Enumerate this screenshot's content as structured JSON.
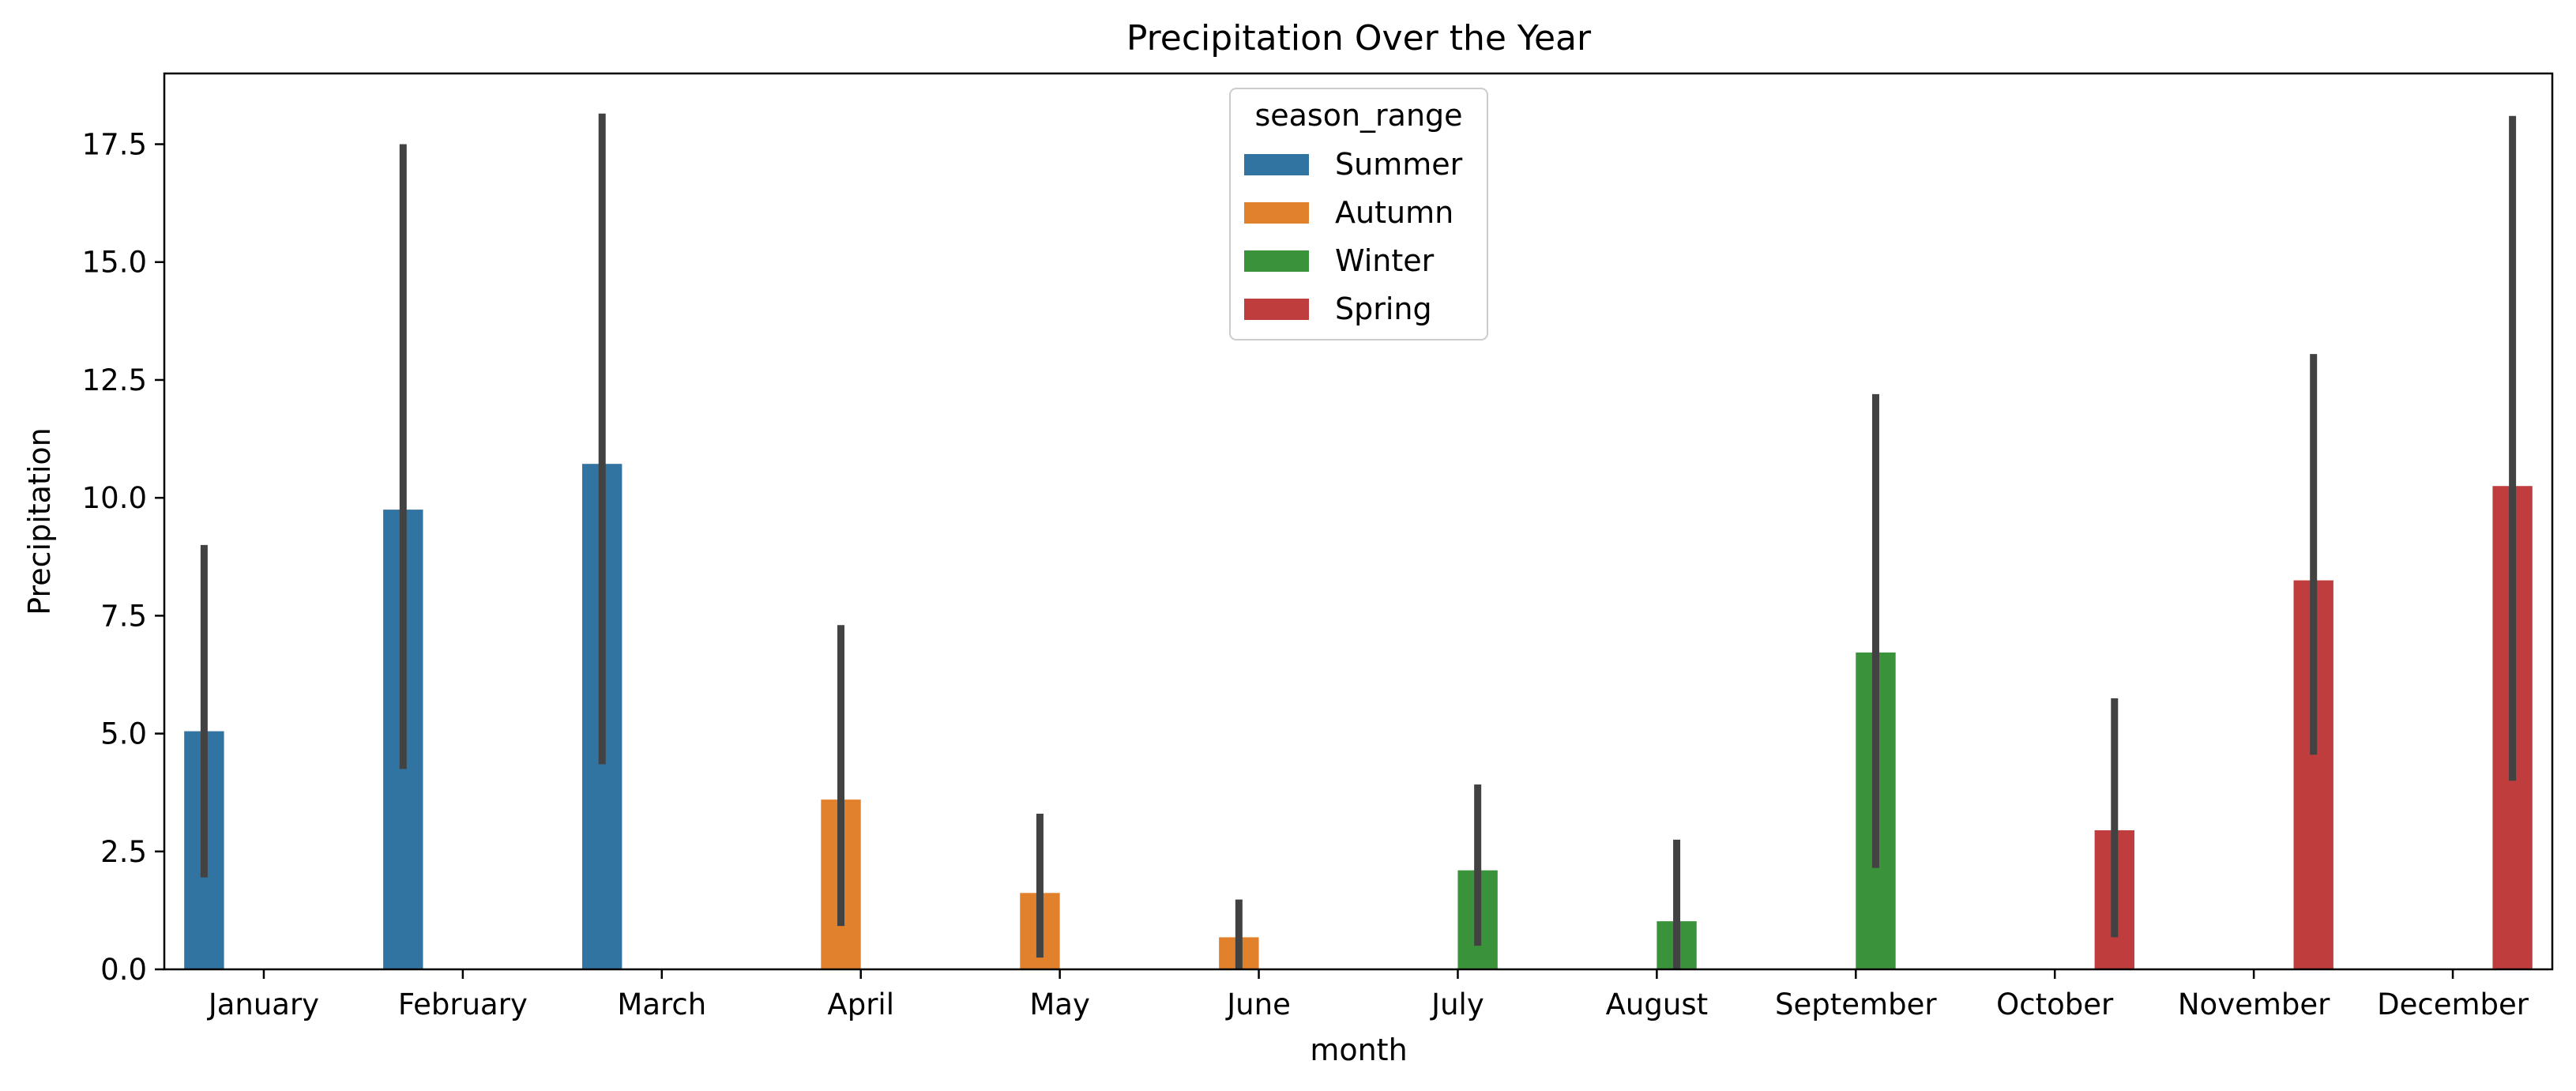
{
  "chart_data": {
    "type": "bar",
    "title": "Precipitation Over the Year",
    "xlabel": "month",
    "ylabel": "Precipitation",
    "ylim": [
      0,
      19
    ],
    "yticks": [
      0,
      2.5,
      5,
      7.5,
      10,
      12.5,
      15,
      17.5
    ],
    "ytick_labels": [
      "0.0",
      "2.5",
      "5.0",
      "7.5",
      "10.0",
      "12.5",
      "15.0",
      "17.5"
    ],
    "categories": [
      "January",
      "February",
      "March",
      "April",
      "May",
      "June",
      "July",
      "August",
      "September",
      "October",
      "November",
      "December"
    ],
    "legend_title": "season_range",
    "legend_position": "top-center",
    "grid": false,
    "series": [
      {
        "name": "Summer",
        "color": "#3274a1",
        "values": [
          5.05,
          9.75,
          10.72,
          null,
          null,
          null,
          null,
          null,
          null,
          null,
          null,
          null
        ],
        "ci_low": [
          1.95,
          4.25,
          4.35,
          null,
          null,
          null,
          null,
          null,
          null,
          null,
          null,
          null
        ],
        "ci_high": [
          9.0,
          17.5,
          18.15,
          null,
          null,
          null,
          null,
          null,
          null,
          null,
          null,
          null
        ]
      },
      {
        "name": "Autumn",
        "color": "#e1812c",
        "values": [
          null,
          null,
          null,
          3.6,
          1.62,
          0.68,
          null,
          null,
          null,
          null,
          null,
          null
        ],
        "ci_low": [
          null,
          null,
          null,
          0.92,
          0.25,
          0.0,
          null,
          null,
          null,
          null,
          null,
          null
        ],
        "ci_high": [
          null,
          null,
          null,
          7.3,
          3.3,
          1.48,
          null,
          null,
          null,
          null,
          null,
          null
        ]
      },
      {
        "name": "Winter",
        "color": "#3a923a",
        "values": [
          null,
          null,
          null,
          null,
          null,
          null,
          2.1,
          1.02,
          6.72,
          null,
          null,
          null
        ],
        "ci_low": [
          null,
          null,
          null,
          null,
          null,
          null,
          0.5,
          0.0,
          2.15,
          null,
          null,
          null
        ],
        "ci_high": [
          null,
          null,
          null,
          null,
          null,
          null,
          3.92,
          2.75,
          12.2,
          null,
          null,
          null
        ]
      },
      {
        "name": "Spring",
        "color": "#c03d3e",
        "values": [
          null,
          null,
          null,
          null,
          null,
          null,
          null,
          null,
          null,
          2.95,
          8.25,
          10.25
        ],
        "ci_low": [
          null,
          null,
          null,
          null,
          null,
          null,
          null,
          null,
          null,
          0.68,
          4.55,
          4.0
        ],
        "ci_high": [
          null,
          null,
          null,
          null,
          null,
          null,
          null,
          null,
          null,
          5.75,
          13.05,
          18.1
        ]
      }
    ]
  }
}
